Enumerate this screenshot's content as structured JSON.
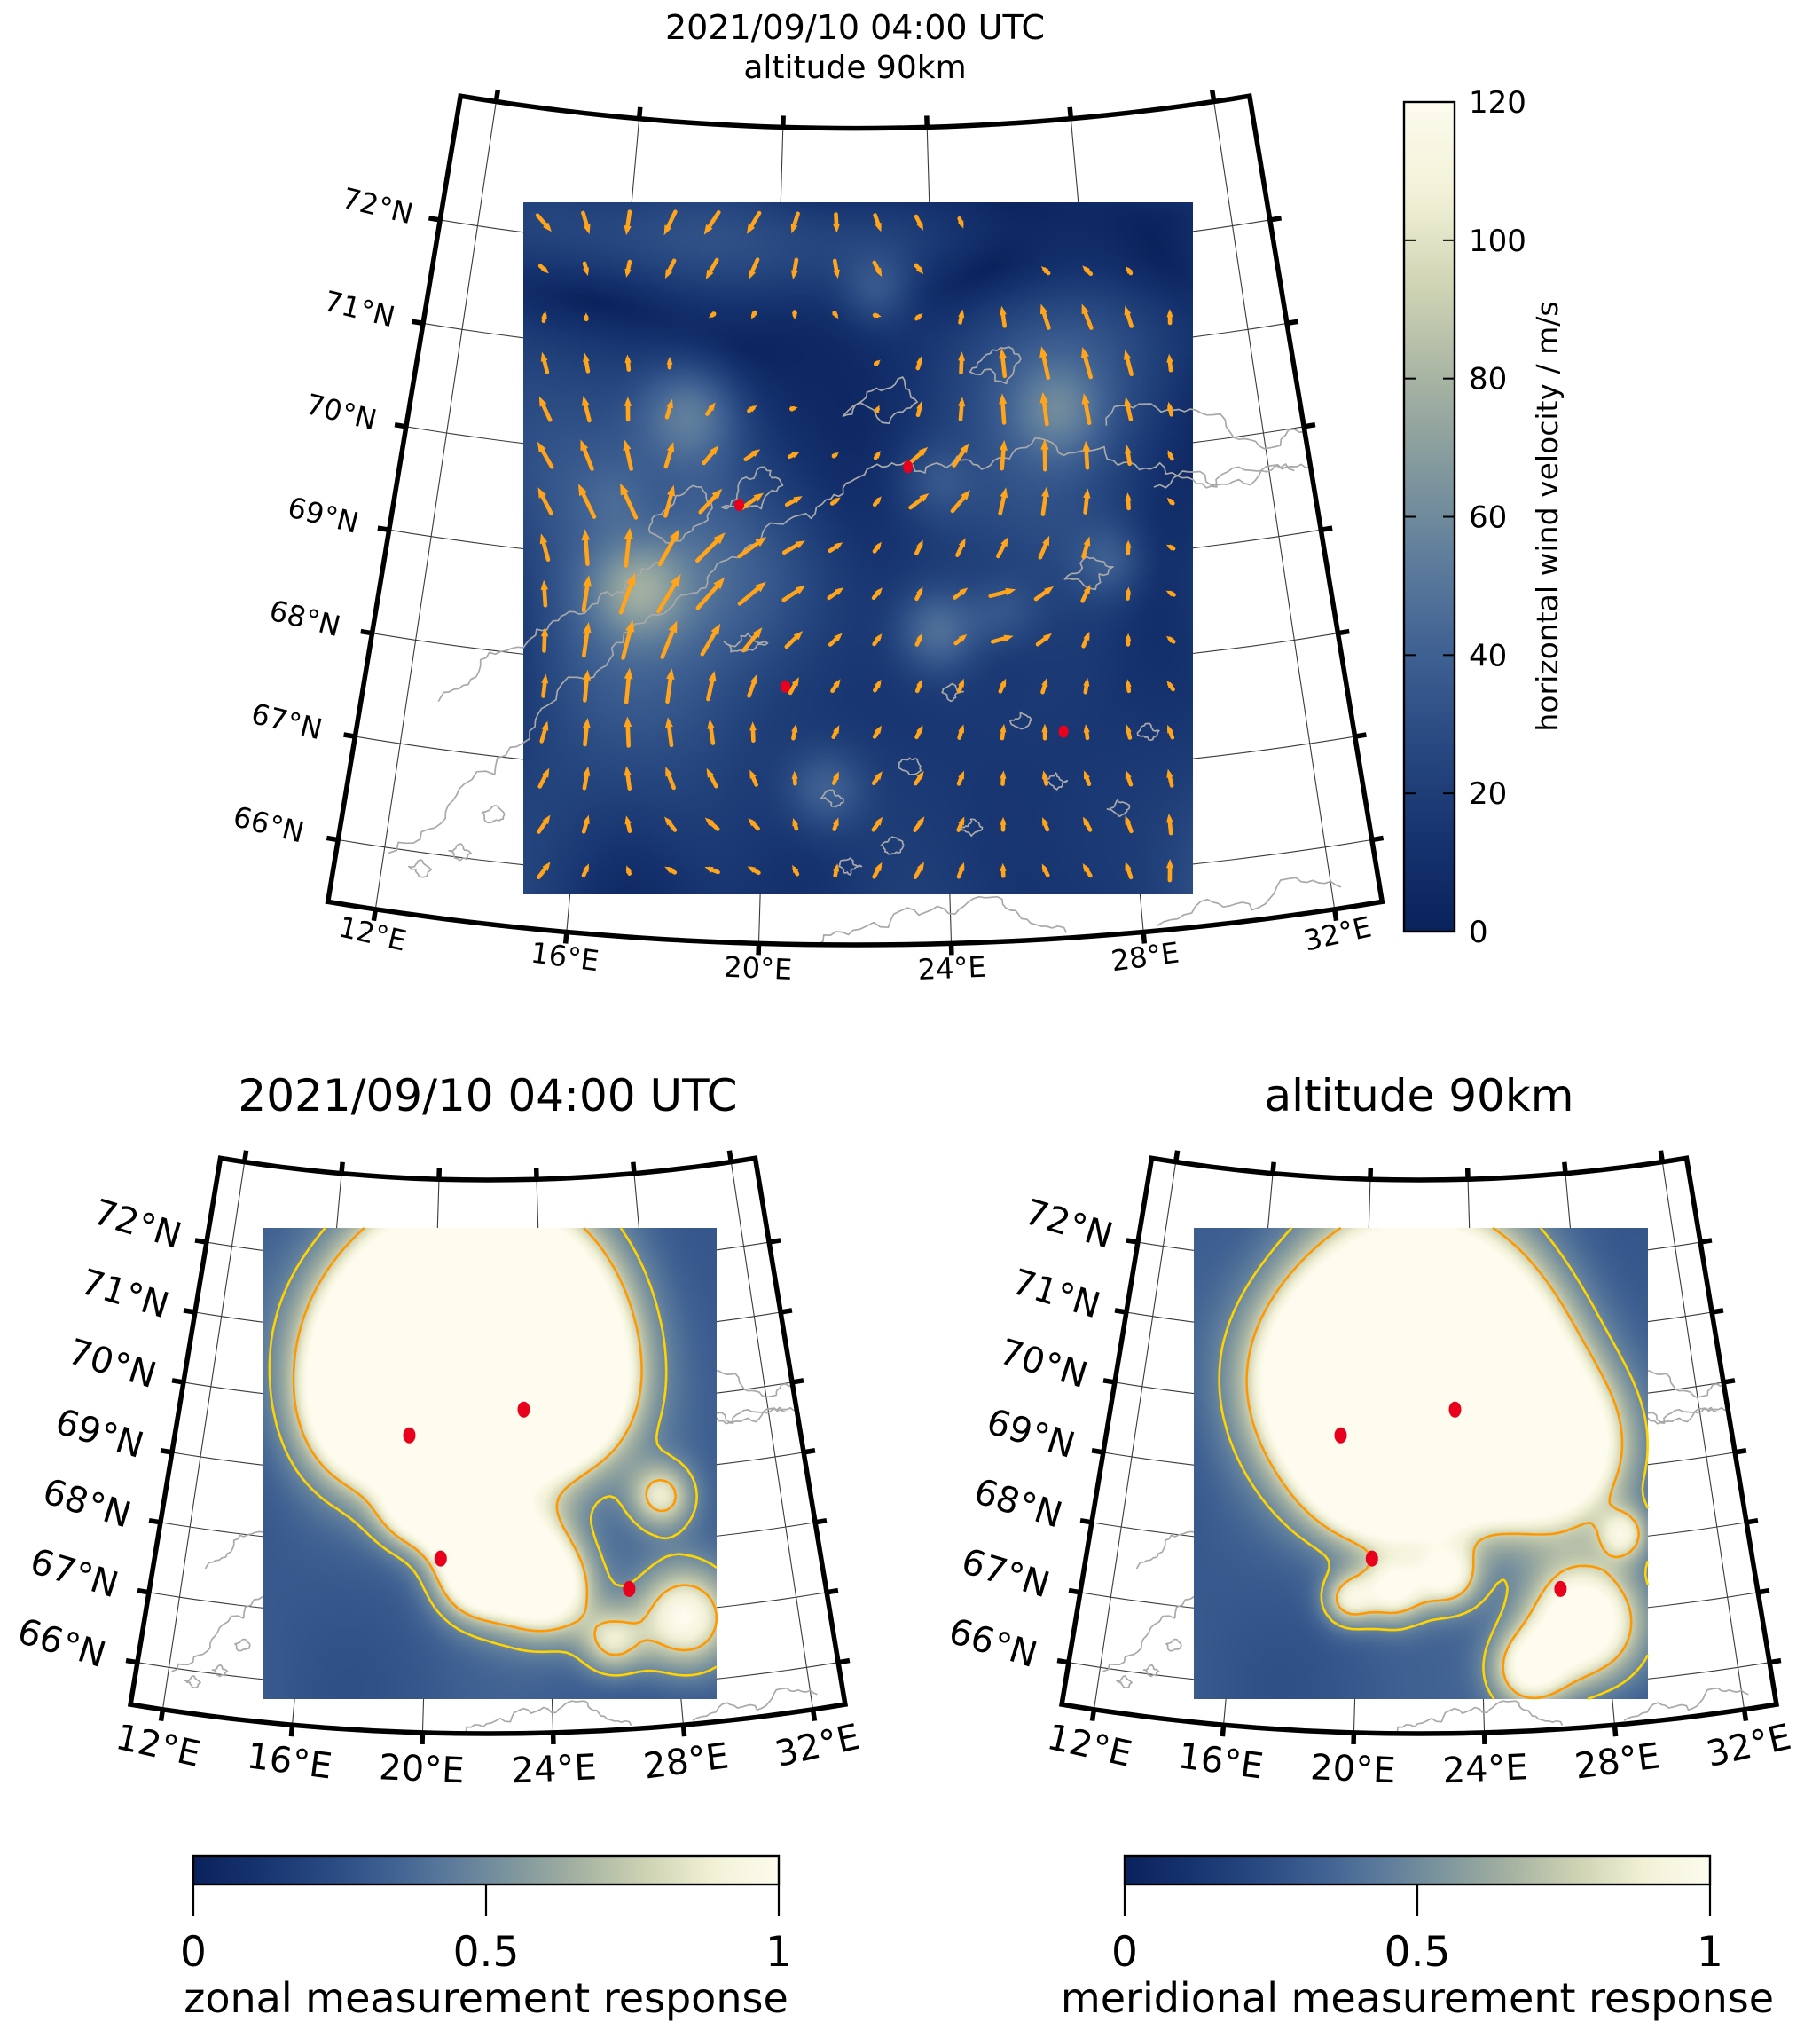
{
  "top_panel": {
    "title_line1": "2021/09/10 04:00 UTC",
    "title_line2": "altitude 90km",
    "colorbar": {
      "label": "horizontal wind velocity / m/s",
      "tick_labels": [
        "0",
        "20",
        "40",
        "60",
        "80",
        "100",
        "120"
      ],
      "min": 0,
      "max": 120
    }
  },
  "bottom_left_panel": {
    "title": "2021/09/10 04:00 UTC",
    "colorbar": {
      "label": "zonal measurement response",
      "tick_labels": [
        "0",
        "0.5",
        "1"
      ],
      "min": 0,
      "max": 1
    }
  },
  "bottom_right_panel": {
    "title": "altitude 90km",
    "colorbar": {
      "label": "meridional measurement response",
      "tick_labels": [
        "0",
        "0.5",
        "1"
      ],
      "min": 0,
      "max": 1
    }
  },
  "maps": {
    "lat_tick_labels": [
      "72°N",
      "71°N",
      "70°N",
      "69°N",
      "68°N",
      "67°N",
      "66°N"
    ],
    "lon_tick_labels": [
      "12°E",
      "16°E",
      "20°E",
      "24°E",
      "28°E",
      "32°E"
    ]
  },
  "colors": {
    "wind_arrow": "#FFA41B",
    "station_marker": "#E8001D",
    "contour_outer": "#FFD400",
    "contour_inner": "#FF9800",
    "coastline": "#A9A9A9",
    "graticule": "#3a3a3a",
    "border": "#000000",
    "colormap_stops": [
      "#0A225C",
      "#16336F",
      "#274880",
      "#3E6092",
      "#5D7C9C",
      "#81989D",
      "#A8B4A3",
      "#CFD4B4",
      "#F2F1D7",
      "#FDFCEE"
    ]
  },
  "chart_data": [
    {
      "type": "heatmap",
      "subtype": "quiver over wind-speed heatmap on conic map projection",
      "title": "2021/09/10 04:00 UTC altitude 90km",
      "lat_ticks": [
        66,
        67,
        68,
        69,
        70,
        71,
        72
      ],
      "lon_ticks": [
        12,
        16,
        20,
        24,
        28,
        32
      ],
      "colorbar": {
        "label": "horizontal wind velocity / m/s",
        "range": [
          0,
          120
        ],
        "ticks": [
          0,
          20,
          40,
          60,
          80,
          100,
          120
        ]
      },
      "field_description": "horizontal wind velocity at 90 km altitude; background mostly 10-50 m/s (dark blue) with isolated pale patches up to ~90 m/s; orange wind vectors on a ~16x15 grid, predominantly northward with local eastward and southwestward patches",
      "station_markers_red_dots": [
        {
          "lat": 69.6,
          "lon": 19.2
        },
        {
          "lat": 70.0,
          "lon": 23.3
        },
        {
          "lat": 67.9,
          "lon": 20.4
        },
        {
          "lat": 67.4,
          "lon": 26.6
        }
      ],
      "data_extent": {
        "lat": [
          65.8,
          72.6
        ],
        "lon": [
          14,
          30
        ]
      },
      "legend_position": "right vertical colorbar"
    },
    {
      "type": "heatmap",
      "subtype": "measurement-response heatmap with contour lines on conic map projection",
      "title": "2021/09/10 04:00 UTC",
      "lat_ticks": [
        66,
        67,
        68,
        69,
        70,
        71,
        72
      ],
      "lon_ticks": [
        12,
        16,
        20,
        24,
        28,
        32
      ],
      "colorbar": {
        "label": "zonal measurement response",
        "range": [
          0,
          1
        ],
        "ticks": [
          0,
          0.5,
          1
        ]
      },
      "contour_levels": [
        0.5,
        0.8
      ],
      "field_description": "zonal measurement response: large saturated white region (response ~1) spanning roughly 68-71°N, 15-26°E outlined by yellow (outer) and orange (inner) contours; smaller response islands near 66.5-68°N; blue background ~0.2-0.3",
      "station_markers_red_dots": [
        {
          "lat": 69.6,
          "lon": 19.2
        },
        {
          "lat": 70.0,
          "lon": 23.3
        },
        {
          "lat": 67.9,
          "lon": 20.4
        },
        {
          "lat": 67.4,
          "lon": 26.6
        }
      ],
      "legend_position": "bottom horizontal colorbar"
    },
    {
      "type": "heatmap",
      "subtype": "measurement-response heatmap with contour lines on conic map projection",
      "title": "altitude 90km",
      "lat_ticks": [
        66,
        67,
        68,
        69,
        70,
        71,
        72
      ],
      "lon_ticks": [
        12,
        16,
        20,
        24,
        28,
        32
      ],
      "colorbar": {
        "label": "meridional measurement response",
        "range": [
          0,
          1
        ],
        "ticks": [
          0,
          0.5,
          1
        ]
      },
      "contour_levels": [
        0.5,
        0.8
      ],
      "field_description": "meridional measurement response: large saturated white region (response ~1) spanning roughly 67.5-71°N, 16-28°E outlined by yellow and orange contours; small contour islands near 66-66.5°N and a response patch at the southeast corner; blue background ~0.2-0.3",
      "station_markers_red_dots": [
        {
          "lat": 69.6,
          "lon": 19.2
        },
        {
          "lat": 70.0,
          "lon": 23.3
        },
        {
          "lat": 67.9,
          "lon": 20.4
        },
        {
          "lat": 67.4,
          "lon": 26.6
        }
      ],
      "legend_position": "bottom horizontal colorbar"
    }
  ]
}
